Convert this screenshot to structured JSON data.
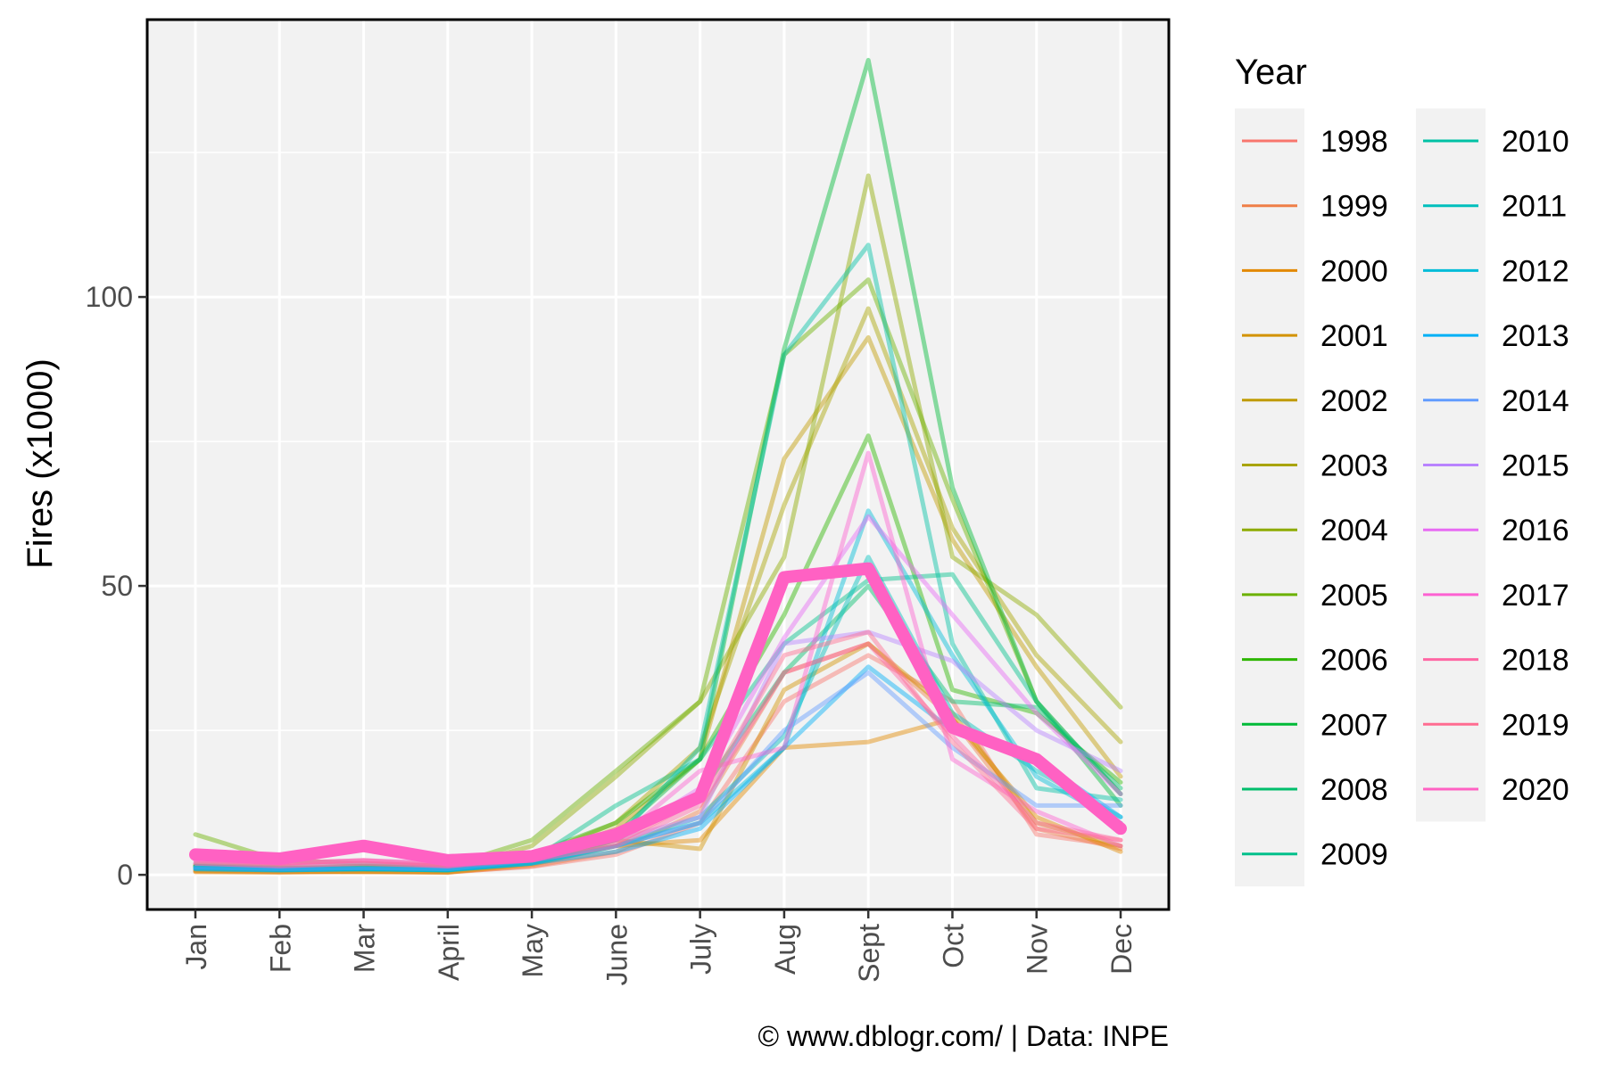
{
  "chart_data": {
    "type": "line",
    "title": "",
    "xlabel": "",
    "ylabel": "Fires (x1000)",
    "categories": [
      "Jan",
      "Feb",
      "Mar",
      "April",
      "May",
      "June",
      "July",
      "Aug",
      "Sept",
      "Oct",
      "Nov",
      "Dec"
    ],
    "ylim": [
      -6,
      148
    ],
    "yticks": [
      0,
      50,
      100
    ],
    "grid": true,
    "legend_title": "Year",
    "legend_position": "right",
    "highlight_series": "2020",
    "series": [
      {
        "name": "1998",
        "color": "#F8766D",
        "values": [
          0.8,
          0.5,
          0.6,
          0.5,
          1.4,
          3.5,
          9.0,
          30.0,
          38.0,
          30.0,
          7.0,
          5.0
        ]
      },
      {
        "name": "1999",
        "color": "#EF7F47",
        "values": [
          0.6,
          0.5,
          0.5,
          0.4,
          1.5,
          4.0,
          11.0,
          35.0,
          40.0,
          27.0,
          8.0,
          4.5
        ]
      },
      {
        "name": "2000",
        "color": "#E38900",
        "values": [
          0.5,
          0.4,
          0.6,
          0.4,
          1.8,
          5.0,
          6.0,
          22.0,
          23.0,
          27.0,
          10.0,
          4.0
        ]
      },
      {
        "name": "2001",
        "color": "#D39200",
        "values": [
          0.7,
          0.6,
          0.5,
          0.5,
          2.0,
          6.0,
          4.5,
          32.0,
          40.0,
          28.0,
          9.0,
          5.0
        ]
      },
      {
        "name": "2002",
        "color": "#C09B00",
        "values": [
          1.5,
          1.0,
          1.0,
          0.8,
          2.5,
          8.0,
          20.0,
          72.0,
          93.0,
          58.0,
          36.0,
          17.0
        ]
      },
      {
        "name": "2003",
        "color": "#A9A400",
        "values": [
          1.8,
          1.2,
          1.0,
          0.9,
          3.0,
          9.0,
          22.0,
          64.0,
          98.0,
          60.0,
          38.0,
          23.0
        ]
      },
      {
        "name": "2004",
        "color": "#8EAB00",
        "values": [
          1.6,
          1.3,
          1.5,
          1.0,
          5.0,
          17.0,
          30.0,
          55.0,
          121.0,
          55.0,
          45.0,
          29.0
        ]
      },
      {
        "name": "2005",
        "color": "#6BB100",
        "values": [
          7.0,
          2.5,
          2.0,
          1.5,
          6.0,
          18.0,
          30.0,
          90.0,
          103.0,
          65.0,
          30.0,
          14.0
        ]
      },
      {
        "name": "2006",
        "color": "#2DB600",
        "values": [
          1.5,
          1.0,
          1.5,
          1.2,
          3.5,
          9.0,
          20.0,
          45.0,
          76.0,
          32.0,
          28.0,
          16.0
        ]
      },
      {
        "name": "2007",
        "color": "#00BA38",
        "values": [
          1.4,
          1.1,
          1.2,
          1.0,
          3.0,
          7.0,
          20.0,
          91.0,
          141.0,
          67.0,
          30.0,
          12.0
        ]
      },
      {
        "name": "2008",
        "color": "#00BE6C",
        "values": [
          1.2,
          0.9,
          1.0,
          0.8,
          2.8,
          6.0,
          14.0,
          35.0,
          50.0,
          30.0,
          29.0,
          15.0
        ]
      },
      {
        "name": "2009",
        "color": "#00C08B",
        "values": [
          1.5,
          1.0,
          1.0,
          0.9,
          2.5,
          12.0,
          20.0,
          40.0,
          51.0,
          52.0,
          30.0,
          14.0
        ]
      },
      {
        "name": "2010",
        "color": "#00C1A5",
        "values": [
          1.3,
          1.0,
          1.1,
          0.9,
          2.2,
          6.0,
          22.0,
          90.0,
          109.0,
          40.0,
          15.0,
          13.0
        ]
      },
      {
        "name": "2011",
        "color": "#00BFBC",
        "values": [
          1.2,
          0.9,
          1.0,
          0.8,
          2.0,
          5.0,
          10.0,
          24.0,
          55.0,
          28.0,
          18.0,
          10.0
        ]
      },
      {
        "name": "2012",
        "color": "#00BCD8",
        "values": [
          1.0,
          0.8,
          1.0,
          0.8,
          2.0,
          5.0,
          9.0,
          22.0,
          63.0,
          38.0,
          17.0,
          9.0
        ]
      },
      {
        "name": "2013",
        "color": "#00B0F6",
        "values": [
          1.0,
          0.8,
          1.0,
          0.9,
          2.0,
          4.0,
          8.0,
          22.0,
          36.0,
          25.0,
          20.0,
          10.0
        ]
      },
      {
        "name": "2014",
        "color": "#619CFF",
        "values": [
          1.3,
          1.0,
          1.2,
          1.0,
          2.5,
          5.0,
          9.0,
          25.0,
          35.0,
          22.0,
          12.0,
          12.0
        ]
      },
      {
        "name": "2015",
        "color": "#B983FF",
        "values": [
          2.0,
          1.5,
          2.0,
          1.5,
          3.0,
          6.0,
          10.0,
          40.0,
          42.0,
          37.0,
          25.0,
          18.0
        ]
      },
      {
        "name": "2016",
        "color": "#E76BF3",
        "values": [
          2.5,
          2.0,
          2.5,
          2.0,
          3.5,
          6.0,
          15.0,
          41.0,
          62.0,
          45.0,
          28.0,
          14.0
        ]
      },
      {
        "name": "2017",
        "color": "#FD61D1",
        "values": [
          3.0,
          2.0,
          2.5,
          1.5,
          3.0,
          6.0,
          18.0,
          22.0,
          73.0,
          20.0,
          11.0,
          5.0
        ]
      },
      {
        "name": "2018",
        "color": "#FF67A4",
        "values": [
          2.0,
          1.5,
          2.0,
          1.5,
          2.5,
          5.0,
          12.0,
          35.0,
          40.0,
          24.0,
          9.0,
          6.0
        ]
      },
      {
        "name": "2019",
        "color": "#FF6C91",
        "values": [
          2.5,
          2.0,
          2.5,
          1.8,
          3.0,
          5.5,
          13.0,
          38.0,
          42.0,
          23.0,
          8.0,
          6.0
        ]
      },
      {
        "name": "2020",
        "color": "#FF61C3",
        "values": [
          3.5,
          2.8,
          5.0,
          2.5,
          3.2,
          7.0,
          13.5,
          51.5,
          53.0,
          25.5,
          20.0,
          8.0
        ]
      }
    ],
    "caption": "© www.dblogr.com/  |  Data: INPE"
  }
}
